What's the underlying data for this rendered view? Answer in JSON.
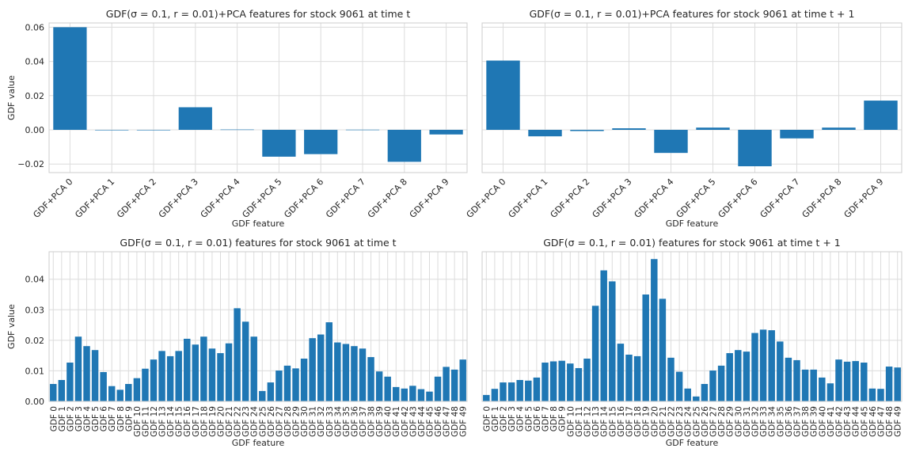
{
  "chart_data": [
    {
      "type": "bar",
      "title": "GDF(σ = 0.1, r = 0.01)+PCA features for stock 9061 at time t",
      "xlabel": "GDF feature",
      "ylabel": "GDF value",
      "ylim": [
        -0.025,
        0.0625
      ],
      "yticks": [
        -0.02,
        0.0,
        0.02,
        0.04,
        0.06
      ],
      "ytick_labels": [
        "−0.02",
        "0.00",
        "0.02",
        "0.04",
        "0.06"
      ],
      "grid": true,
      "categories": [
        "GDF+PCA 0",
        "GDF+PCA 1",
        "GDF+PCA 2",
        "GDF+PCA 3",
        "GDF+PCA 4",
        "GDF+PCA 5",
        "GDF+PCA 6",
        "GDF+PCA 7",
        "GDF+PCA 8",
        "GDF+PCA 9"
      ],
      "values": [
        0.06,
        -0.0002,
        -0.0001,
        0.0132,
        0.0002,
        -0.0157,
        -0.0142,
        0.0001,
        -0.0187,
        -0.0027
      ],
      "color": "#1f77b4"
    },
    {
      "type": "bar",
      "title": "GDF(σ = 0.1, r = 0.01)+PCA features for stock 9061 at time t + 1",
      "xlabel": "GDF feature",
      "ylabel": "",
      "ylim": [
        -0.025,
        0.0625
      ],
      "yticks": [
        -0.02,
        0.0,
        0.02,
        0.04,
        0.06
      ],
      "ytick_labels": [
        "",
        "",
        "",
        "",
        ""
      ],
      "grid": true,
      "categories": [
        "GDF+PCA 0",
        "GDF+PCA 1",
        "GDF+PCA 2",
        "GDF+PCA 3",
        "GDF+PCA 4",
        "GDF+PCA 5",
        "GDF+PCA 6",
        "GDF+PCA 7",
        "GDF+PCA 8",
        "GDF+PCA 9"
      ],
      "values": [
        0.0405,
        -0.0038,
        -0.0007,
        0.0009,
        -0.0135,
        0.0013,
        -0.0213,
        -0.005,
        0.0013,
        0.0171
      ],
      "color": "#1f77b4"
    },
    {
      "type": "bar",
      "title": "GDF(σ = 0.1, r = 0.01) features for stock 9061 at time t",
      "xlabel": "GDF feature",
      "ylabel": "GDF value",
      "ylim": [
        0,
        0.049
      ],
      "yticks": [
        0.0,
        0.01,
        0.02,
        0.03,
        0.04
      ],
      "ytick_labels": [
        "0.00",
        "0.01",
        "0.02",
        "0.03",
        "0.04"
      ],
      "grid": true,
      "categories": [
        "GDF 0",
        "GDF 1",
        "GDF 2",
        "GDF 3",
        "GDF 4",
        "GDF 5",
        "GDF 6",
        "GDF 7",
        "GDF 8",
        "GDF 9",
        "GDF 10",
        "GDF 11",
        "GDF 12",
        "GDF 13",
        "GDF 14",
        "GDF 15",
        "GDF 16",
        "GDF 17",
        "GDF 18",
        "GDF 19",
        "GDF 20",
        "GDF 21",
        "GDF 22",
        "GDF 23",
        "GDF 24",
        "GDF 25",
        "GDF 26",
        "GDF 27",
        "GDF 28",
        "GDF 29",
        "GDF 30",
        "GDF 31",
        "GDF 32",
        "GDF 33",
        "GDF 34",
        "GDF 35",
        "GDF 36",
        "GDF 37",
        "GDF 38",
        "GDF 39",
        "GDF 40",
        "GDF 41",
        "GDF 42",
        "GDF 43",
        "GDF 44",
        "GDF 45",
        "GDF 46",
        "GDF 47",
        "GDF 48",
        "GDF 49"
      ],
      "values": [
        0.0057,
        0.007,
        0.0127,
        0.0212,
        0.0181,
        0.0168,
        0.0096,
        0.005,
        0.0038,
        0.0057,
        0.0076,
        0.0107,
        0.0137,
        0.0165,
        0.0148,
        0.0165,
        0.0205,
        0.0186,
        0.0212,
        0.0173,
        0.0158,
        0.019,
        0.0305,
        0.0261,
        0.0212,
        0.0034,
        0.0062,
        0.0101,
        0.0117,
        0.0108,
        0.014,
        0.0207,
        0.0219,
        0.0259,
        0.0193,
        0.0188,
        0.0181,
        0.0173,
        0.0145,
        0.0098,
        0.0081,
        0.0047,
        0.0042,
        0.0051,
        0.004,
        0.0032,
        0.0081,
        0.0113,
        0.0104,
        0.0137
      ],
      "color": "#1f77b4"
    },
    {
      "type": "bar",
      "title": "GDF(σ = 0.1, r = 0.01) features for stock 9061 at time t + 1",
      "xlabel": "GDF feature",
      "ylabel": "",
      "ylim": [
        0,
        0.049
      ],
      "yticks": [
        0.0,
        0.01,
        0.02,
        0.03,
        0.04
      ],
      "ytick_labels": [
        "",
        "",
        "",
        "",
        ""
      ],
      "grid": true,
      "categories": [
        "GDF 0",
        "GDF 1",
        "GDF 2",
        "GDF 3",
        "GDF 4",
        "GDF 5",
        "GDF 6",
        "GDF 7",
        "GDF 8",
        "GDF 9",
        "GDF 10",
        "GDF 11",
        "GDF 12",
        "GDF 13",
        "GDF 14",
        "GDF 15",
        "GDF 16",
        "GDF 17",
        "GDF 18",
        "GDF 19",
        "GDF 20",
        "GDF 21",
        "GDF 22",
        "GDF 23",
        "GDF 24",
        "GDF 25",
        "GDF 26",
        "GDF 27",
        "GDF 28",
        "GDF 29",
        "GDF 30",
        "GDF 31",
        "GDF 32",
        "GDF 33",
        "GDF 34",
        "GDF 35",
        "GDF 36",
        "GDF 37",
        "GDF 38",
        "GDF 39",
        "GDF 40",
        "GDF 41",
        "GDF 42",
        "GDF 43",
        "GDF 44",
        "GDF 45",
        "GDF 46",
        "GDF 47",
        "GDF 48",
        "GDF 49"
      ],
      "values": [
        0.0021,
        0.0041,
        0.0062,
        0.0062,
        0.007,
        0.0068,
        0.0078,
        0.0127,
        0.0131,
        0.0133,
        0.0124,
        0.0109,
        0.014,
        0.0313,
        0.0429,
        0.0393,
        0.0189,
        0.0153,
        0.0148,
        0.035,
        0.0466,
        0.0336,
        0.0143,
        0.0097,
        0.0042,
        0.0016,
        0.0057,
        0.0101,
        0.0117,
        0.0158,
        0.0168,
        0.0163,
        0.0224,
        0.0235,
        0.0233,
        0.0196,
        0.0143,
        0.0135,
        0.0104,
        0.0104,
        0.0078,
        0.0059,
        0.0137,
        0.013,
        0.0132,
        0.0127,
        0.0042,
        0.0041,
        0.0114,
        0.0111
      ],
      "color": "#1f77b4"
    }
  ]
}
